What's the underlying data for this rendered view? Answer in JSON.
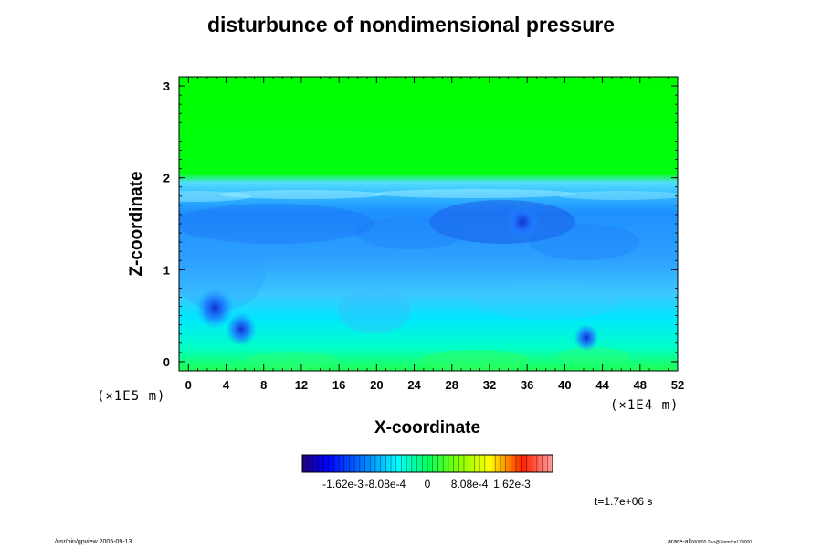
{
  "chart_data": {
    "type": "heatmap",
    "title": "disturbunce of nondimensional pressure",
    "xlabel": "X-coordinate",
    "ylabel": "Z-coordinate",
    "x_unit": "(×1E4 m)",
    "y_unit": "(×1E5 m)",
    "x_ticks": [
      "0",
      "4",
      "8",
      "12",
      "16",
      "20",
      "24",
      "28",
      "32",
      "36",
      "40",
      "44",
      "48",
      "52"
    ],
    "y_ticks": [
      "0",
      "1",
      "2",
      "3"
    ],
    "xlim": [
      -1,
      52
    ],
    "ylim": [
      -0.1,
      3.1
    ],
    "colorbar": {
      "tick_labels": [
        "-1.62e-3",
        "-8.08e-4",
        "0",
        "8.08e-4",
        "1.62e-3"
      ],
      "tick_values": [
        -0.00162,
        -0.000808,
        0,
        0.000808,
        0.00162
      ],
      "range": [
        -0.0024,
        0.0024
      ]
    },
    "field_regions": [
      {
        "region": "z from 2.0 to 3.1",
        "value": 0.0
      },
      {
        "region": "z from 1.9 to 2.0",
        "value": -0.0002
      },
      {
        "region": "z from 1.0 to 1.8",
        "value": -0.00095
      },
      {
        "region": "z from 0.3 to 1.0",
        "value": -0.0006
      },
      {
        "region": "z from -0.1 to 0.3",
        "value": -0.0003
      }
    ],
    "minima": [
      {
        "x": 2.8,
        "z": 0.58,
        "value": -0.0015
      },
      {
        "x": 5.6,
        "z": 0.35,
        "value": -0.0011
      },
      {
        "x": 35.5,
        "z": 1.52,
        "value": -0.0013
      },
      {
        "x": 42.3,
        "z": 0.26,
        "value": -0.0007
      }
    ]
  },
  "annotations": {
    "time": "t=1.7e+06 s",
    "footer_left": "/usr/bin/gpview 2005-09-13",
    "footer_right": "arare-all",
    "footer_right_sub": "000800 2no@Zmm/c=170000"
  },
  "colors": {
    "green": "#00ff00",
    "light_blue": "#33bbff",
    "mid_blue": "#1e90ff",
    "cyan": "#00f0f0"
  }
}
